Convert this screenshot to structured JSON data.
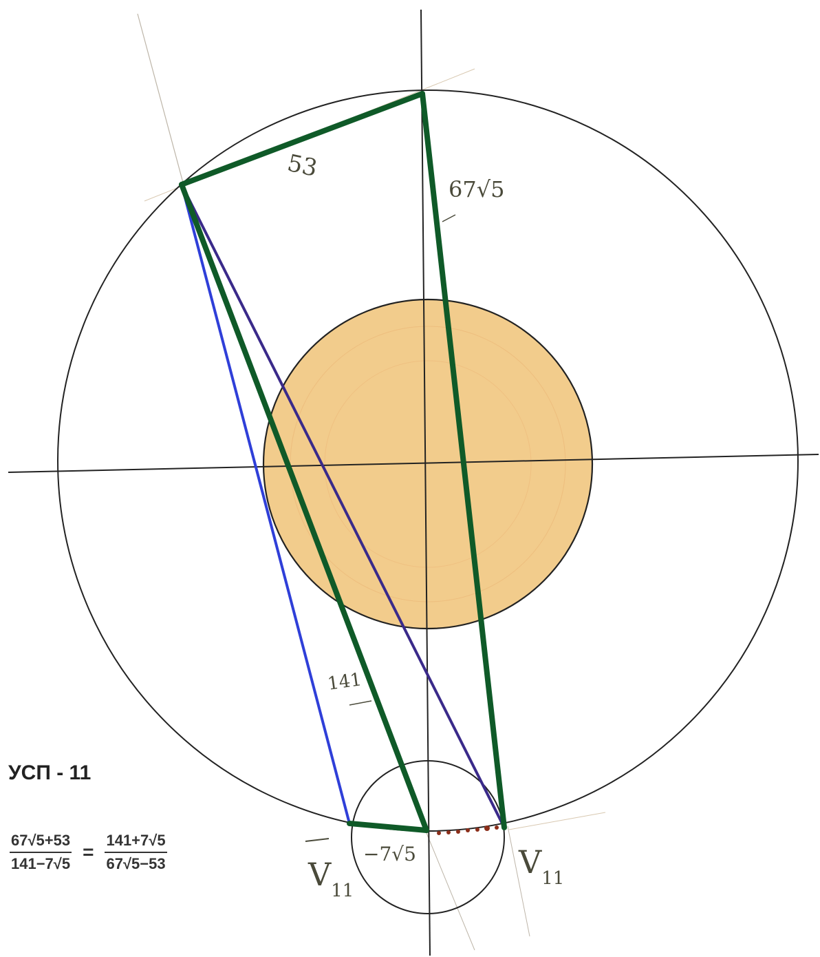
{
  "title": "УСП - 11",
  "formula": {
    "lhs_num": "67√5+53",
    "lhs_den": "141−7√5",
    "eq": "=",
    "rhs_num": "141+7√5",
    "rhs_den": "67√5−53"
  },
  "labels": {
    "seg_top": "53",
    "seg_right": "67√5",
    "seg_blue": "141",
    "seg_bottom": "−7√5",
    "vertex_left": "V",
    "vertex_left_sub": "11",
    "vertex_right": "V",
    "vertex_right_sub": "11"
  },
  "colors": {
    "axis": "#222222",
    "green": "#0f5a28",
    "blue": "#2f3fd8",
    "violet": "#3a2a8a",
    "sun_fill": "#f2cc8c",
    "sun_stroke": "#222222",
    "dots": "#8b2e1a"
  }
}
